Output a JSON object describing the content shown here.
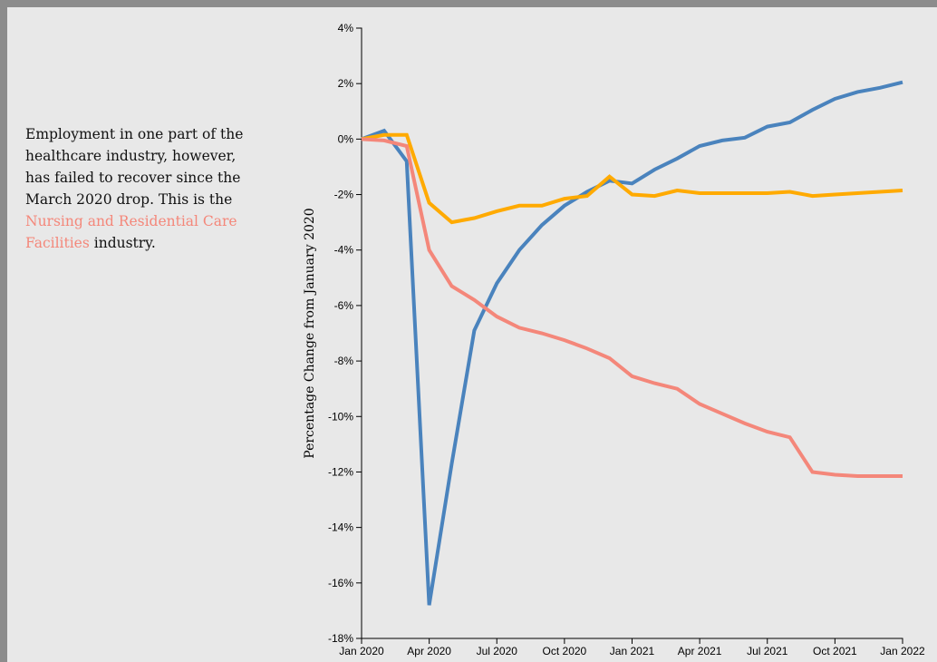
{
  "story": {
    "text_before": "Employment in one part of the healthcare industry, however, has failed to recover since the March 2020 drop. This is the",
    "highlight": "Nursing and Residential Care Facilities",
    "text_after": "industry."
  },
  "colors": {
    "series_blue": "#4a83bd",
    "series_orange": "#ffaa00",
    "series_salmon": "#f4877a",
    "highlight_text": "#f4877a"
  },
  "chart_data": {
    "type": "line",
    "xlabel": "",
    "ylabel": "Percentage Change from January 2020",
    "x_ticks": [
      "Jan 2020",
      "Apr 2020",
      "Jul 2020",
      "Oct 2020",
      "Jan 2021",
      "Apr 2021",
      "Jul 2021",
      "Oct 2021",
      "Jan 2022"
    ],
    "y_ticks": [
      "4%",
      "2%",
      "0%",
      "-2%",
      "-4%",
      "-6%",
      "-8%",
      "-10%",
      "-12%",
      "-14%",
      "-16%",
      "-18%"
    ],
    "ylim": [
      -18,
      4
    ],
    "xlim": [
      "2020-01",
      "2022-01"
    ],
    "x": [
      "2020-01",
      "2020-02",
      "2020-03",
      "2020-04",
      "2020-05",
      "2020-06",
      "2020-07",
      "2020-08",
      "2020-09",
      "2020-10",
      "2020-11",
      "2020-12",
      "2021-01",
      "2021-02",
      "2021-03",
      "2021-04",
      "2021-05",
      "2021-06",
      "2021-07",
      "2021-08",
      "2021-09",
      "2021-10",
      "2021-11",
      "2021-12",
      "2022-01"
    ],
    "grid": false,
    "series": [
      {
        "color": "#4a83bd",
        "values": [
          0,
          0.3,
          -0.8,
          -16.8,
          -11.7,
          -6.9,
          -5.2,
          -4.0,
          -3.1,
          -2.4,
          -1.9,
          -1.5,
          -1.6,
          -1.1,
          -0.7,
          -0.25,
          -0.05,
          0.05,
          0.45,
          0.6,
          1.05,
          1.45,
          1.7,
          1.85,
          2.05
        ]
      },
      {
        "color": "#ffaa00",
        "values": [
          0,
          0.15,
          0.15,
          -2.3,
          -3.0,
          -2.85,
          -2.6,
          -2.4,
          -2.4,
          -2.15,
          -2.05,
          -1.35,
          -2.0,
          -2.05,
          -1.85,
          -1.95,
          -1.95,
          -1.95,
          -1.95,
          -1.9,
          -2.05,
          -2.0,
          -1.95,
          -1.9,
          -1.85
        ]
      },
      {
        "color": "#f4877a",
        "values": [
          0,
          -0.05,
          -0.25,
          -4.0,
          -5.3,
          -5.8,
          -6.4,
          -6.8,
          -7.0,
          -7.25,
          -7.55,
          -7.9,
          -8.55,
          -8.8,
          -9.0,
          -9.55,
          -9.9,
          -10.25,
          -10.55,
          -10.75,
          -12.0,
          -12.1,
          -12.15,
          -12.15,
          -12.15
        ]
      }
    ]
  }
}
